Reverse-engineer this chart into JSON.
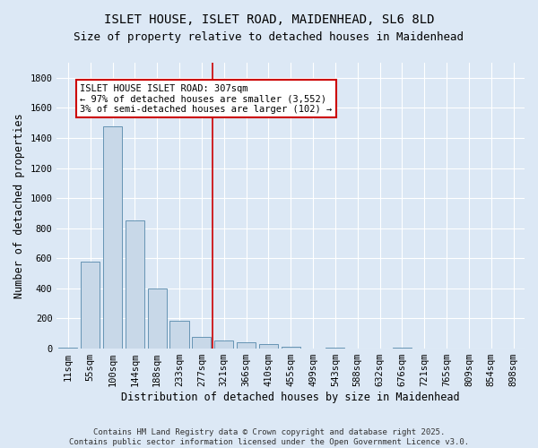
{
  "title": "ISLET HOUSE, ISLET ROAD, MAIDENHEAD, SL6 8LD",
  "subtitle": "Size of property relative to detached houses in Maidenhead",
  "xlabel": "Distribution of detached houses by size in Maidenhead",
  "ylabel": "Number of detached properties",
  "footer_line1": "Contains HM Land Registry data © Crown copyright and database right 2025.",
  "footer_line2": "Contains public sector information licensed under the Open Government Licence v3.0.",
  "bar_labels": [
    "11sqm",
    "55sqm",
    "100sqm",
    "144sqm",
    "188sqm",
    "233sqm",
    "277sqm",
    "321sqm",
    "366sqm",
    "410sqm",
    "455sqm",
    "499sqm",
    "543sqm",
    "588sqm",
    "632sqm",
    "676sqm",
    "721sqm",
    "765sqm",
    "809sqm",
    "854sqm",
    "898sqm"
  ],
  "bar_values": [
    5,
    580,
    1480,
    850,
    400,
    185,
    80,
    55,
    40,
    33,
    15,
    0,
    5,
    0,
    0,
    5,
    0,
    0,
    0,
    0,
    0
  ],
  "bar_color": "#c8d8e8",
  "bar_edge_color": "#5588aa",
  "vline_x_index": 7.0,
  "vline_color": "#cc0000",
  "annotation_text": "ISLET HOUSE ISLET ROAD: 307sqm\n← 97% of detached houses are smaller (3,552)\n3% of semi-detached houses are larger (102) →",
  "annotation_box_color": "#ffffff",
  "annotation_box_edge_color": "#cc0000",
  "annotation_fontsize": 7.5,
  "ylim": [
    0,
    1900
  ],
  "yticks": [
    0,
    200,
    400,
    600,
    800,
    1000,
    1200,
    1400,
    1600,
    1800
  ],
  "bg_color": "#dce8f5",
  "plot_bg_color": "#dce8f5",
  "title_fontsize": 10,
  "subtitle_fontsize": 9,
  "axis_label_fontsize": 8.5,
  "tick_fontsize": 7.5,
  "footer_fontsize": 6.5
}
